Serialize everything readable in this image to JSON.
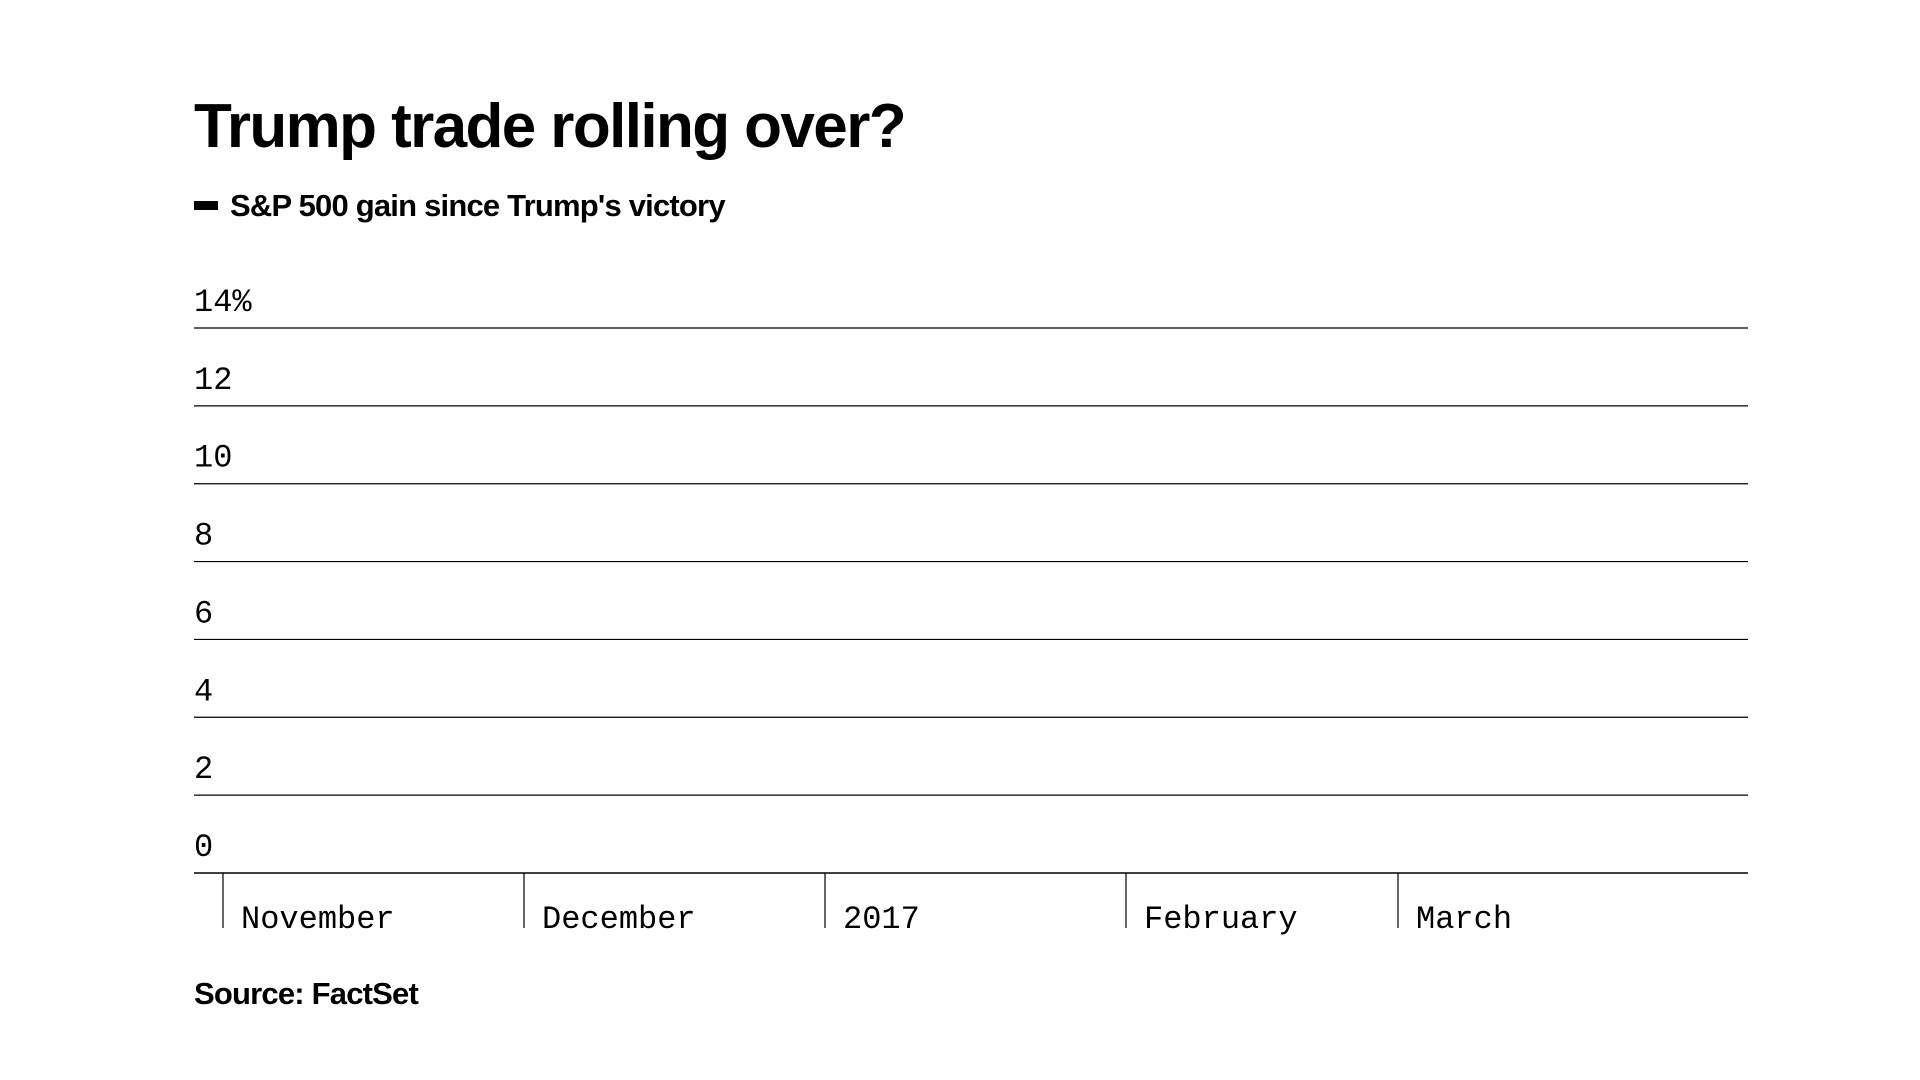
{
  "title": "Trump trade rolling over?",
  "legend": {
    "label": "S&P 500 gain since Trump's victory",
    "color": "#000000"
  },
  "source": "Source: FactSet",
  "chart_data": {
    "type": "line",
    "title": "Trump trade rolling over?",
    "ylabel": "",
    "xlabel": "",
    "ylim": [
      0,
      14
    ],
    "y_ticks": [
      0,
      2,
      4,
      6,
      8,
      10,
      12,
      14
    ],
    "y_tick_labels": [
      "0",
      "2",
      "4",
      "6",
      "8",
      "10",
      "12",
      "14%"
    ],
    "x_tick_labels": [
      "November",
      "December",
      "2017",
      "February",
      "March"
    ],
    "grid": true,
    "legend_position": "top-left",
    "series": [
      {
        "name": "S&P 500 gain since Trump's victory",
        "color": "#000000",
        "values": []
      }
    ]
  }
}
